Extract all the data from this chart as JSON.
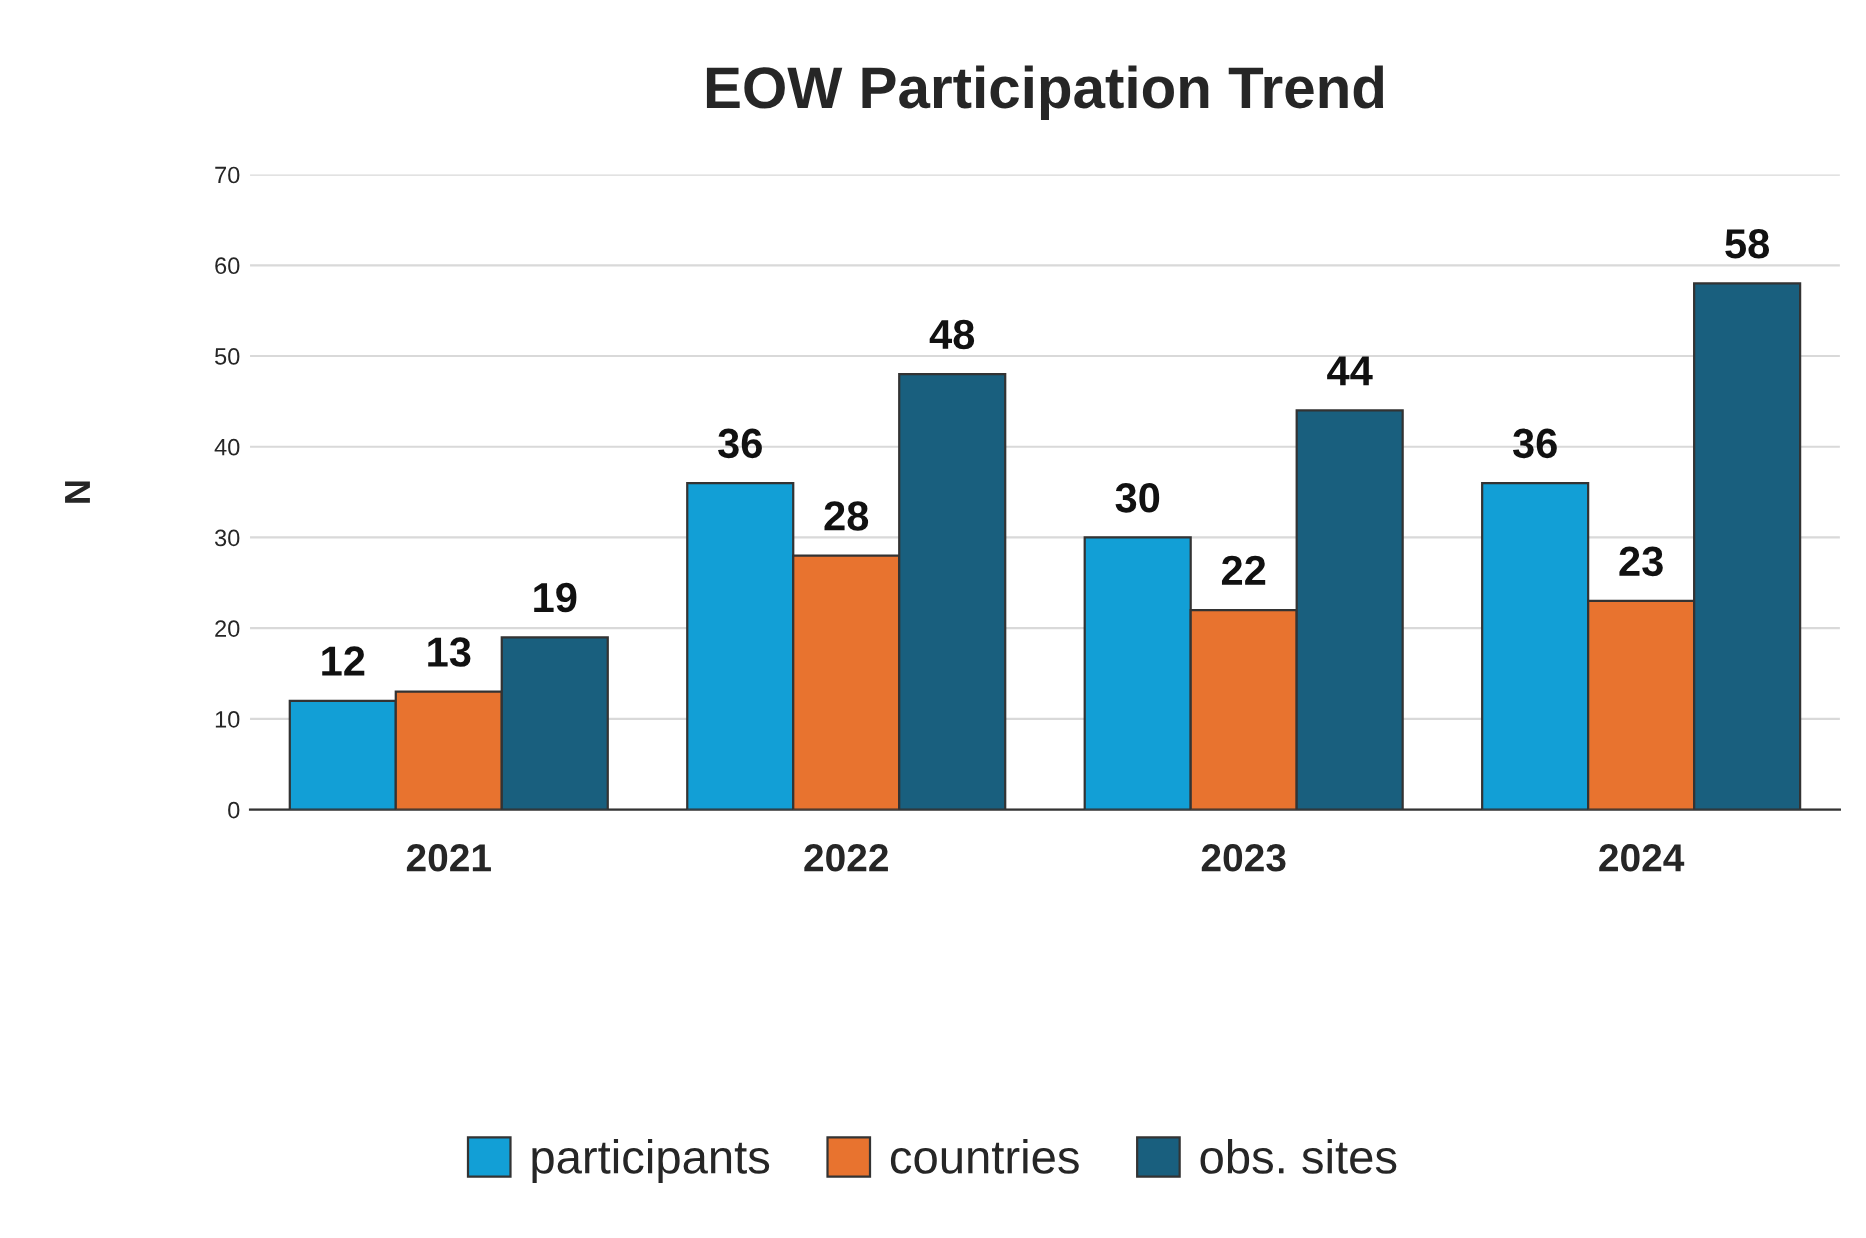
{
  "chart_data": {
    "type": "bar",
    "title": "EOW Participation Trend",
    "ylabel": "N",
    "categories": [
      "2021",
      "2022",
      "2023",
      "2024"
    ],
    "series": [
      {
        "name": "participants",
        "color": "#129fd6",
        "values": [
          12,
          36,
          30,
          36
        ]
      },
      {
        "name": "countries",
        "color": "#e8732f",
        "values": [
          13,
          28,
          22,
          23
        ]
      },
      {
        "name": "obs. sites",
        "color": "#195f7e",
        "values": [
          19,
          48,
          44,
          58
        ]
      }
    ],
    "ylim": [
      0,
      70
    ],
    "yticks": [
      0,
      10,
      20,
      30,
      40,
      50,
      60,
      70
    ],
    "grid": "y",
    "legend": "bottom",
    "data_labels": true
  }
}
